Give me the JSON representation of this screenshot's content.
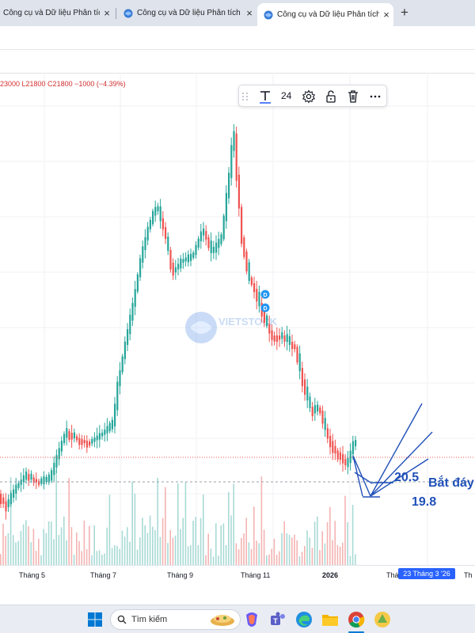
{
  "browser": {
    "tabs": [
      {
        "title": "Công cụ và Dữ liệu Phân tích kỹ",
        "active": false
      },
      {
        "title": "Công cụ và Dữ liệu Phân tích kỹ",
        "active": false
      },
      {
        "title": "Công cụ và Dữ liệu Phân tích kỹ",
        "active": true
      }
    ],
    "new_tab": "+",
    "close_glyph": "×"
  },
  "legend": {
    "ohlc": "23000  L21800  C21800  −1000 (−4.39%)",
    "color": "#d32f2f"
  },
  "drawing_toolbar": {
    "font_size": "24",
    "items": [
      "drag-handle-icon",
      "text-icon",
      "settings-icon",
      "unlock-icon",
      "trash-icon",
      "more-icon"
    ]
  },
  "annotations": {
    "level_upper": "20.5",
    "level_lower": "19.8",
    "note": "Bắt đáy",
    "color": "#2050b8"
  },
  "axis": {
    "x_labels": [
      "Tháng 5",
      "Tháng 7",
      "Tháng 9",
      "Tháng 11",
      "2026",
      "Thá",
      "Th"
    ],
    "cursor_label": "23 Tháng 3 '26"
  },
  "watermark": "VIETSTOCK",
  "taskbar": {
    "search_placeholder": "Tìm kiếm",
    "icons": [
      "windows-start-icon",
      "widget-icon",
      "copilot-icon",
      "teams-icon",
      "edge-icon",
      "file-explorer-icon",
      "chrome-icon",
      "app-icon"
    ]
  },
  "colors": {
    "up": "#26a69a",
    "down": "#ef5350",
    "accent": "#2962ff",
    "last_price_line": "#ef5350"
  },
  "chart_data": {
    "type": "candlestick",
    "x_labels": [
      "Tháng 5",
      "Tháng 7",
      "Tháng 9",
      "Tháng 11",
      "2026"
    ],
    "last_close": 21800,
    "low": 21800,
    "change": -1000,
    "change_pct": -4.39,
    "trend": "rally from May to an October peak, then a decline into early 2026",
    "annotations": [
      {
        "label": "20.5",
        "kind": "projection"
      },
      {
        "label": "19.8",
        "kind": "projection"
      },
      {
        "label": "Bắt đáy",
        "kind": "note"
      }
    ]
  }
}
